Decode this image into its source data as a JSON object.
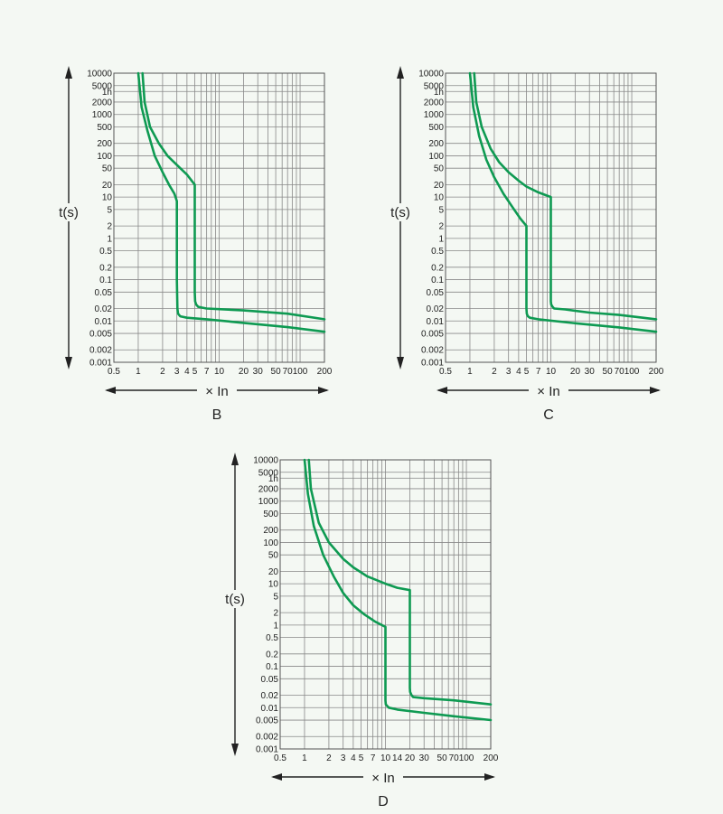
{
  "colors": {
    "curve": "#0e9a52",
    "grid": "#888888",
    "text": "#222222",
    "background": "#f4f8f3"
  },
  "chart_data": [
    {
      "type": "line",
      "title": "B",
      "xlabel": "× In",
      "ylabel": "t(s)",
      "x_scale": "log",
      "y_scale": "log",
      "xlim": [
        0.5,
        200
      ],
      "ylim": [
        0.001,
        10000
      ],
      "xticks": [
        "0.5",
        "1",
        "2",
        "3",
        "4",
        "5",
        "7",
        "10",
        "20",
        "30",
        "50",
        "70",
        "100",
        "200"
      ],
      "yticks": [
        "0.001",
        "0.002",
        "0.005",
        "0.01",
        "0.02",
        "0.05",
        "0.1",
        "0.2",
        "0.5",
        "1",
        "2",
        "5",
        "10",
        "20",
        "50",
        "100",
        "200",
        "500",
        "1000",
        "2000",
        "1h",
        "5000",
        "10000"
      ],
      "series": [
        {
          "x": [
            1.0,
            1.1,
            1.3,
            1.6,
            2.0,
            2.4,
            2.8,
            3.0,
            3.0,
            3.05,
            3.1,
            3.3,
            4.0,
            7.0,
            20,
            70,
            200
          ],
          "y": [
            10000,
            1500,
            400,
            100,
            40,
            20,
            12,
            8,
            0.1,
            0.02,
            0.015,
            0.013,
            0.012,
            0.011,
            0.009,
            0.0071,
            0.0055
          ]
        },
        {
          "x": [
            1.13,
            1.2,
            1.4,
            1.8,
            2.3,
            3.0,
            4.0,
            5.0,
            5.0,
            5.05,
            5.2,
            5.5,
            7.0,
            20,
            70,
            200
          ],
          "y": [
            10000,
            2000,
            500,
            200,
            100,
            60,
            35,
            20,
            0.05,
            0.03,
            0.025,
            0.022,
            0.02,
            0.018,
            0.015,
            0.011
          ]
        }
      ]
    },
    {
      "type": "line",
      "title": "C",
      "xlabel": "× In",
      "ylabel": "t(s)",
      "x_scale": "log",
      "y_scale": "log",
      "xlim": [
        0.5,
        200
      ],
      "ylim": [
        0.001,
        10000
      ],
      "xticks": [
        "0.5",
        "1",
        "2",
        "3",
        "4",
        "5",
        "7",
        "10",
        "20",
        "30",
        "50",
        "70",
        "100",
        "200"
      ],
      "yticks": [
        "0.001",
        "0.002",
        "0.005",
        "0.01",
        "0.02",
        "0.05",
        "0.1",
        "0.2",
        "0.5",
        "1",
        "2",
        "5",
        "10",
        "20",
        "50",
        "100",
        "200",
        "500",
        "1000",
        "2000",
        "1h",
        "5000",
        "10000"
      ],
      "series": [
        {
          "x": [
            1.0,
            1.1,
            1.3,
            1.6,
            2.0,
            2.6,
            3.3,
            4.2,
            5.0,
            5.0,
            5.05,
            5.2,
            5.5,
            7.0,
            20,
            70,
            200
          ],
          "y": [
            10000,
            1500,
            300,
            80,
            30,
            12,
            6,
            3,
            2,
            0.02,
            0.015,
            0.013,
            0.012,
            0.011,
            0.0088,
            0.007,
            0.0055
          ]
        },
        {
          "x": [
            1.13,
            1.2,
            1.4,
            1.8,
            2.3,
            3.0,
            4.0,
            5.0,
            7.0,
            10,
            10,
            10.1,
            10.5,
            11,
            15,
            30,
            70,
            200
          ],
          "y": [
            10000,
            2000,
            500,
            150,
            70,
            40,
            25,
            18,
            13,
            10,
            0.03,
            0.025,
            0.022,
            0.02,
            0.019,
            0.016,
            0.014,
            0.011
          ]
        }
      ]
    },
    {
      "type": "line",
      "title": "D",
      "xlabel": "× In",
      "ylabel": "t(s)",
      "x_scale": "log",
      "y_scale": "log",
      "xlim": [
        0.5,
        200
      ],
      "ylim": [
        0.001,
        10000
      ],
      "xticks": [
        "0.5",
        "1",
        "2",
        "3",
        "4",
        "5",
        "7",
        "10",
        "14",
        "20",
        "30",
        "50",
        "70",
        "100",
        "200"
      ],
      "yticks": [
        "0.001",
        "0.002",
        "0.005",
        "0.01",
        "0.02",
        "0.05",
        "0.1",
        "0.2",
        "0.5",
        "1",
        "2",
        "5",
        "10",
        "20",
        "50",
        "100",
        "200",
        "500",
        "1000",
        "2000",
        "1h",
        "5000",
        "10000"
      ],
      "series": [
        {
          "x": [
            1.0,
            1.1,
            1.3,
            1.7,
            2.3,
            3.0,
            4.0,
            5.5,
            7.5,
            10,
            10,
            10.1,
            10.5,
            11,
            14,
            30,
            70,
            200
          ],
          "y": [
            10000,
            1500,
            250,
            50,
            15,
            6,
            3,
            1.8,
            1.2,
            0.9,
            0.015,
            0.012,
            0.011,
            0.01,
            0.009,
            0.0075,
            0.0062,
            0.005
          ]
        },
        {
          "x": [
            1.13,
            1.2,
            1.5,
            2.0,
            3.0,
            4.0,
            6.0,
            10,
            14,
            20,
            20,
            20.2,
            21,
            22,
            30,
            70,
            200
          ],
          "y": [
            10000,
            2000,
            300,
            100,
            40,
            25,
            15,
            10,
            8,
            7,
            0.03,
            0.024,
            0.02,
            0.018,
            0.017,
            0.015,
            0.012
          ]
        }
      ]
    }
  ]
}
